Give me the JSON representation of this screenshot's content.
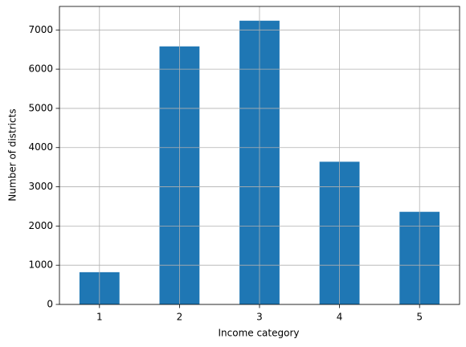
{
  "chart_data": {
    "type": "bar",
    "x_label": "Income category",
    "y_label": "Number of districts",
    "categories": [
      "1",
      "2",
      "3",
      "4",
      "5"
    ],
    "values": [
      822,
      6581,
      7236,
      3639,
      2362
    ],
    "color": "#1f77b4",
    "ylim": [
      0,
      7600
    ],
    "yticks": [
      0,
      1000,
      2000,
      3000,
      4000,
      5000,
      6000,
      7000
    ],
    "grid": true
  }
}
